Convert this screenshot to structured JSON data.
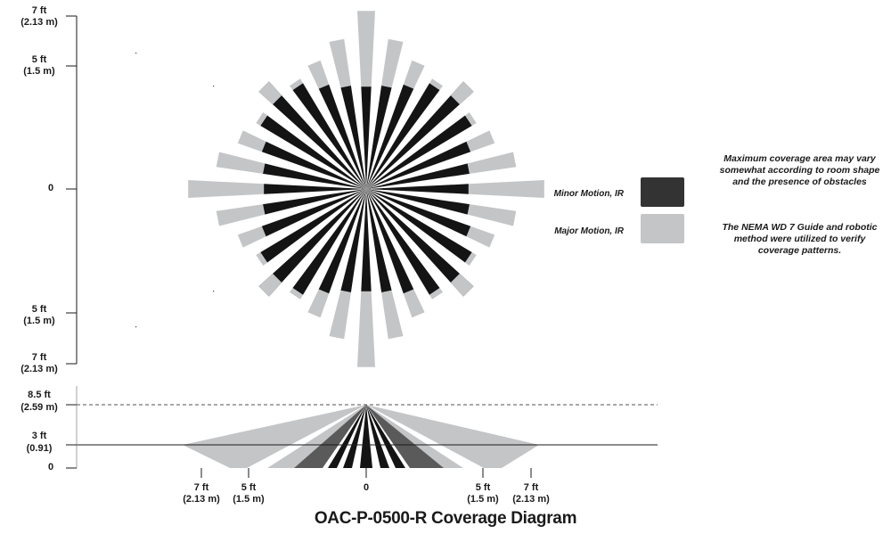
{
  "top_view": {
    "y_axis_ticks": [
      {
        "ft": "7 ft",
        "m": "(2.13 m)"
      },
      {
        "ft": "5 ft",
        "m": "(1.5 m)"
      },
      {
        "ft": "0",
        "m": ""
      },
      {
        "ft": "5 ft",
        "m": "(1.5 m)"
      },
      {
        "ft": "7 ft",
        "m": "(2.13 m)"
      }
    ]
  },
  "side_view": {
    "y_axis_ticks": [
      {
        "ft": "8.5 ft",
        "m": "(2.59 m)"
      },
      {
        "ft": "3 ft",
        "m": "(0.91)"
      },
      {
        "ft": "0",
        "m": ""
      }
    ],
    "x_axis_ticks": [
      {
        "ft": "7 ft",
        "m": "(2.13 m)"
      },
      {
        "ft": "5 ft",
        "m": "(1.5 m)"
      },
      {
        "ft": "0",
        "m": ""
      },
      {
        "ft": "5 ft",
        "m": "(1.5 m)"
      },
      {
        "ft": "7 ft",
        "m": "(2.13 m)"
      }
    ]
  },
  "legend": {
    "minor_label": "Minor Motion, IR",
    "major_label": "Major Motion, IR",
    "minor_color": "#333333",
    "major_color": "#c4c5c7"
  },
  "notes": {
    "note1": "Maximum coverage area may vary somewhat according to room shape and the presence of obstacles",
    "note2": "The NEMA WD 7 Guide and robotic method were utilized to verify coverage patterns."
  },
  "caption": "OAC-P-0500-R Coverage Diagram"
}
